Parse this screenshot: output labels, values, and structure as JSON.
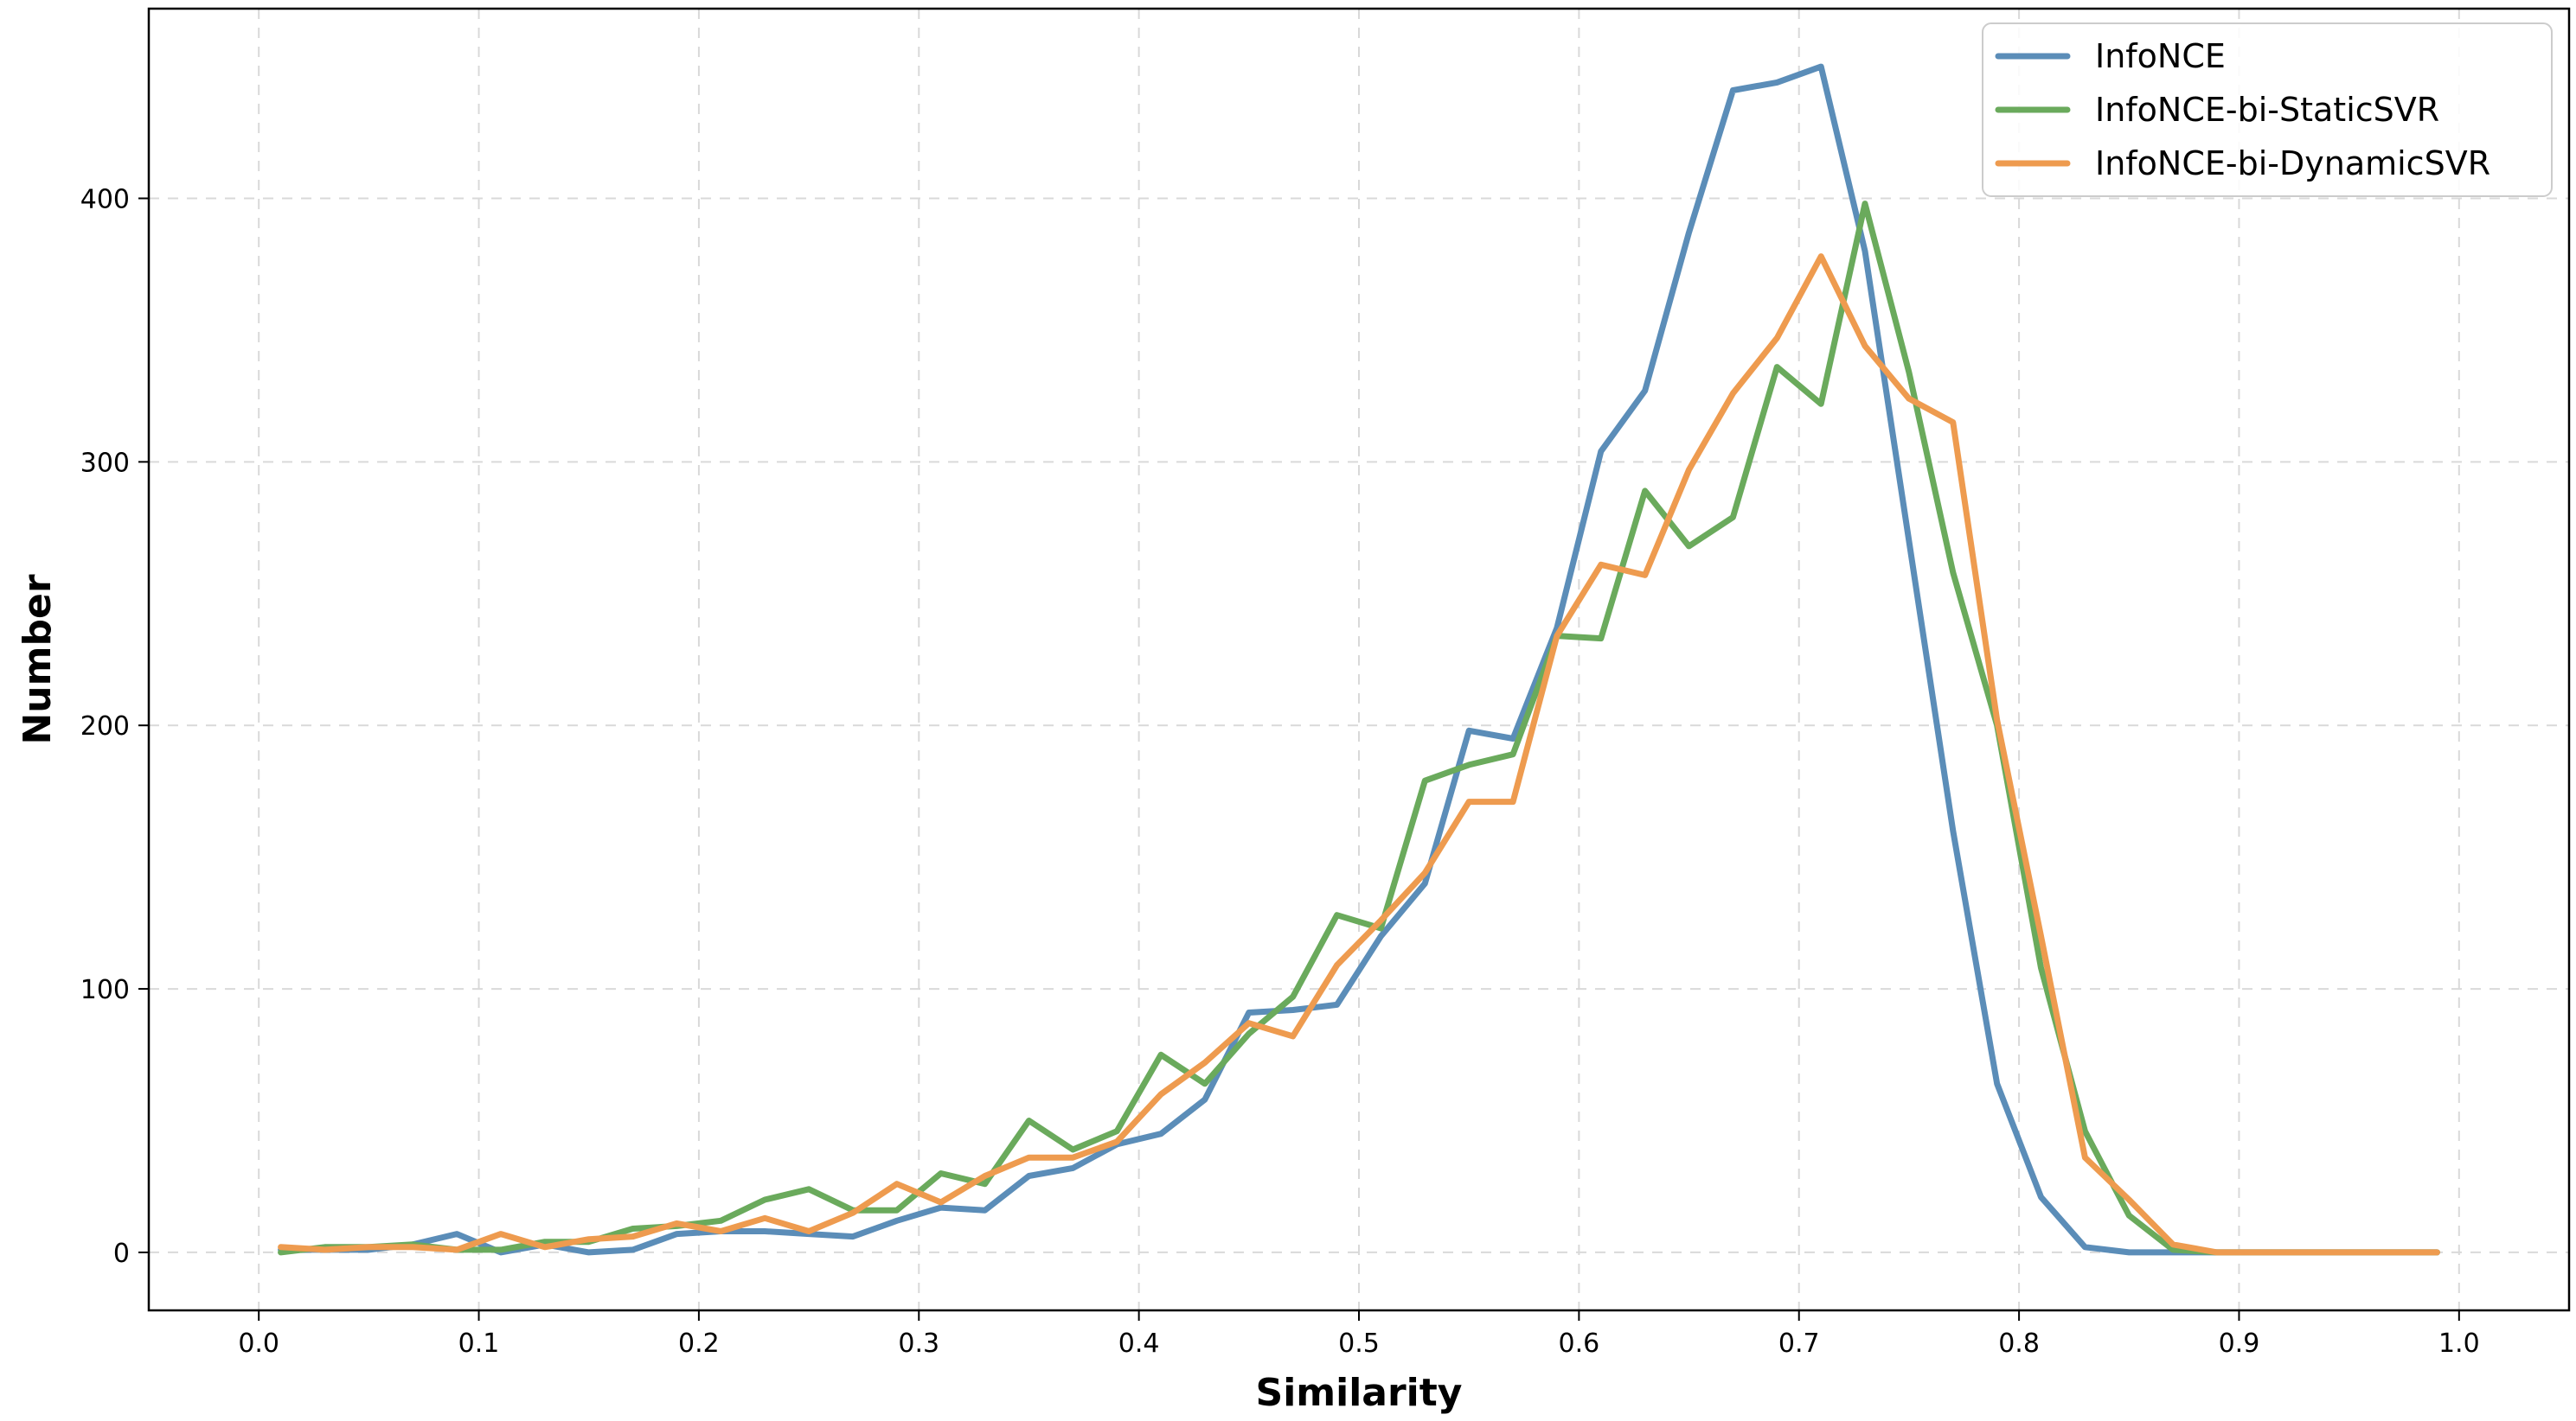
{
  "chart_data": {
    "type": "line",
    "title": "",
    "xlabel": "Similarity",
    "ylabel": "Number",
    "xlim": [
      -0.05,
      1.05
    ],
    "ylim": [
      -22,
      472
    ],
    "xticks": [
      0.0,
      0.1,
      0.2,
      0.3,
      0.4,
      0.5,
      0.6,
      0.7,
      0.8,
      0.9,
      1.0
    ],
    "xtick_labels": [
      "0.0",
      "0.1",
      "0.2",
      "0.3",
      "0.4",
      "0.5",
      "0.6",
      "0.7",
      "0.8",
      "0.9",
      "1.0"
    ],
    "yticks": [
      0,
      100,
      200,
      300,
      400
    ],
    "ytick_labels": [
      "0",
      "100",
      "200",
      "300",
      "400"
    ],
    "grid": true,
    "legend_position": "top-right",
    "x": [
      0.01,
      0.03,
      0.05,
      0.07,
      0.09,
      0.11,
      0.13,
      0.15,
      0.17,
      0.19,
      0.21,
      0.23,
      0.25,
      0.27,
      0.29,
      0.31,
      0.33,
      0.35,
      0.37,
      0.39,
      0.41,
      0.43,
      0.45,
      0.47,
      0.49,
      0.51,
      0.53,
      0.55,
      0.57,
      0.59,
      0.61,
      0.63,
      0.65,
      0.67,
      0.69,
      0.71,
      0.73,
      0.75,
      0.77,
      0.79,
      0.81,
      0.83,
      0.85,
      0.87,
      0.89,
      0.91,
      0.93,
      0.95,
      0.97,
      0.99
    ],
    "series": [
      {
        "name": "InfoNCE",
        "color": "#5b8db8",
        "values": [
          1,
          1,
          1,
          3,
          7,
          0,
          3,
          0,
          1,
          7,
          8,
          8,
          7,
          6,
          12,
          17,
          16,
          29,
          32,
          41,
          45,
          58,
          91,
          92,
          94,
          120,
          140,
          198,
          195,
          237,
          304,
          327,
          387,
          441,
          444,
          450,
          380,
          270,
          160,
          64,
          21,
          2,
          0,
          0,
          0,
          0,
          0,
          0,
          0,
          0
        ]
      },
      {
        "name": "InfoNCE-bi-StaticSVR",
        "color": "#6aaa5c",
        "values": [
          0,
          2,
          2,
          3,
          1,
          1,
          4,
          4,
          9,
          10,
          12,
          20,
          24,
          16,
          16,
          30,
          26,
          50,
          39,
          46,
          75,
          64,
          83,
          97,
          128,
          123,
          179,
          185,
          189,
          234,
          233,
          289,
          268,
          279,
          336,
          322,
          398,
          334,
          258,
          200,
          108,
          46,
          14,
          1,
          0,
          0,
          0,
          0,
          0,
          0
        ]
      },
      {
        "name": "InfoNCE-bi-DynamicSVR",
        "color": "#ee9b4f",
        "values": [
          2,
          1,
          2,
          2,
          1,
          7,
          2,
          5,
          6,
          11,
          8,
          13,
          8,
          15,
          26,
          19,
          29,
          36,
          36,
          42,
          60,
          72,
          87,
          82,
          109,
          126,
          144,
          171,
          171,
          234,
          261,
          257,
          297,
          326,
          347,
          378,
          344,
          324,
          315,
          202,
          120,
          36,
          20,
          3,
          0,
          0,
          0,
          0,
          0,
          0
        ]
      }
    ]
  }
}
